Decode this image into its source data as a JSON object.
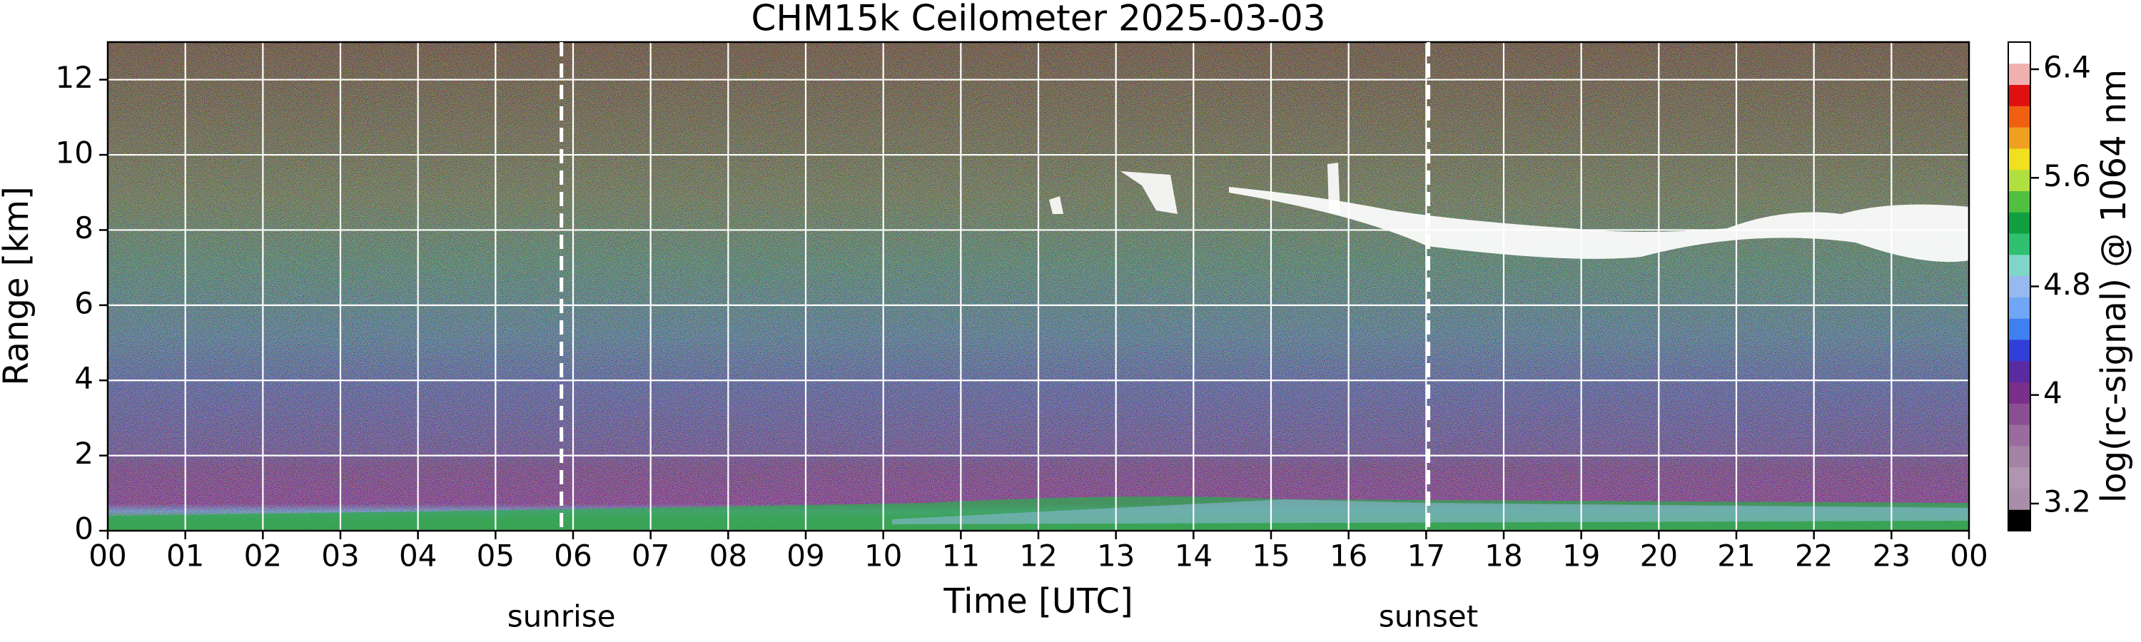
{
  "chart_data": {
    "type": "heatmap",
    "title": "CHM15k Ceilometer 2025-03-03",
    "xlabel": "Time [UTC]",
    "ylabel": "Range [km]",
    "xlim": [
      0,
      24
    ],
    "xticks": [
      {
        "value": 0,
        "label": "00"
      },
      {
        "value": 1,
        "label": "01"
      },
      {
        "value": 2,
        "label": "02"
      },
      {
        "value": 3,
        "label": "03"
      },
      {
        "value": 4,
        "label": "04"
      },
      {
        "value": 5,
        "label": "05"
      },
      {
        "value": 6,
        "label": "06"
      },
      {
        "value": 7,
        "label": "07"
      },
      {
        "value": 8,
        "label": "08"
      },
      {
        "value": 9,
        "label": "09"
      },
      {
        "value": 10,
        "label": "10"
      },
      {
        "value": 11,
        "label": "11"
      },
      {
        "value": 12,
        "label": "12"
      },
      {
        "value": 13,
        "label": "13"
      },
      {
        "value": 14,
        "label": "14"
      },
      {
        "value": 15,
        "label": "15"
      },
      {
        "value": 16,
        "label": "16"
      },
      {
        "value": 17,
        "label": "17"
      },
      {
        "value": 18,
        "label": "18"
      },
      {
        "value": 19,
        "label": "19"
      },
      {
        "value": 20,
        "label": "20"
      },
      {
        "value": 21,
        "label": "21"
      },
      {
        "value": 22,
        "label": "22"
      },
      {
        "value": 23,
        "label": "23"
      },
      {
        "value": 24,
        "label": "00"
      }
    ],
    "ylim": [
      0,
      13
    ],
    "yticks": [
      0,
      2,
      4,
      6,
      8,
      10,
      12
    ],
    "grid": true,
    "annotations": [
      {
        "text": "sunrise",
        "x": 5.85
      },
      {
        "text": "sunset",
        "x": 17.03
      }
    ],
    "colorbar": {
      "label": "log(rc-signal) @ 1064 nm",
      "lim": [
        3.0,
        6.6
      ],
      "ticks": [
        3.2,
        4,
        4.8,
        5.6,
        6.4
      ],
      "colors": [
        "#000000",
        "#a88ea8",
        "#b095b0",
        "#a583a5",
        "#9a6b9e",
        "#8a4f92",
        "#7a2f8a",
        "#5a2aa0",
        "#2f3fd8",
        "#3f7ff0",
        "#6fa6f5",
        "#97b9f0",
        "#7fd6c8",
        "#2fc070",
        "#10a040",
        "#50c040",
        "#b0e040",
        "#f0e020",
        "#f0a020",
        "#f06010",
        "#e01010",
        "#f0b0b0",
        "#ffffff"
      ]
    }
  }
}
